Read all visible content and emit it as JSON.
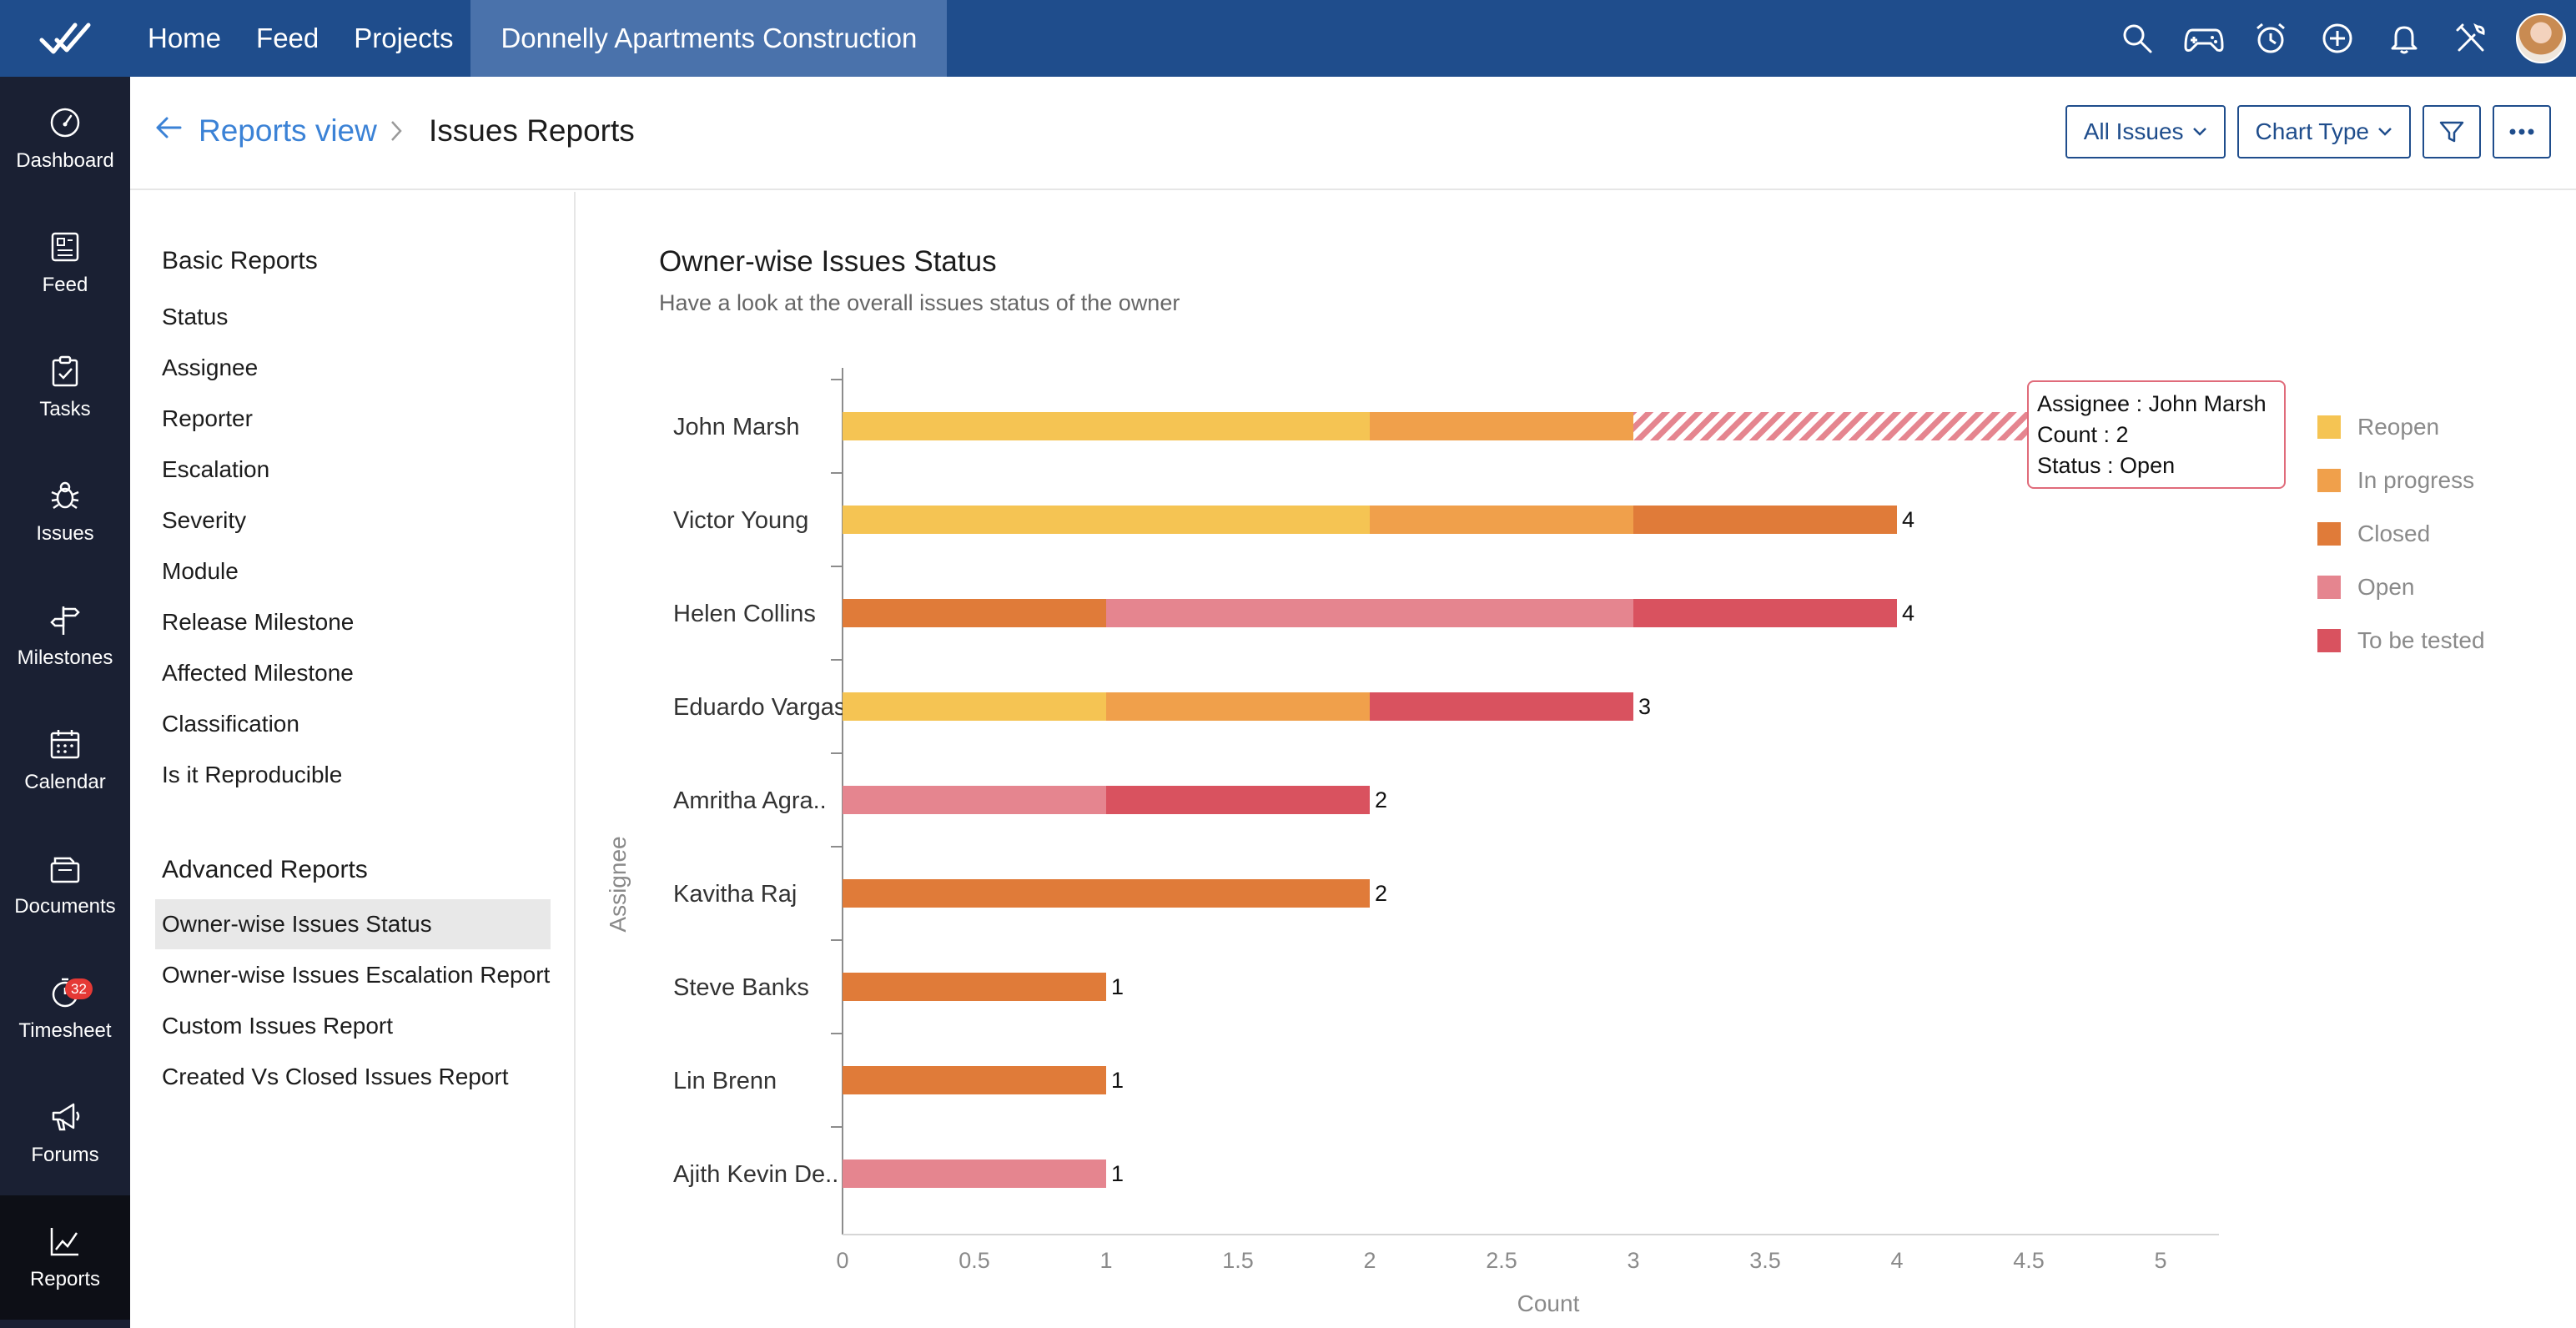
{
  "topbar": {
    "nav": [
      "Home",
      "Feed",
      "Projects"
    ],
    "project": "Donnelly Apartments Construction",
    "icons": [
      "search-icon",
      "gamepad-icon",
      "alarm-icon",
      "plus-circle-icon",
      "bell-icon",
      "tools-icon"
    ]
  },
  "sidebar": {
    "items": [
      {
        "label": "Dashboard",
        "icon": "dashboard-icon"
      },
      {
        "label": "Feed",
        "icon": "feed-icon"
      },
      {
        "label": "Tasks",
        "icon": "tasks-icon"
      },
      {
        "label": "Issues",
        "icon": "bug-icon"
      },
      {
        "label": "Milestones",
        "icon": "signpost-icon"
      },
      {
        "label": "Calendar",
        "icon": "calendar-icon"
      },
      {
        "label": "Documents",
        "icon": "documents-icon"
      },
      {
        "label": "Timesheet",
        "icon": "timer-icon",
        "badge": "32"
      },
      {
        "label": "Forums",
        "icon": "megaphone-icon"
      },
      {
        "label": "Reports",
        "icon": "reports-icon"
      }
    ],
    "active": "Reports"
  },
  "header": {
    "breadcrumb_link": "Reports view",
    "breadcrumb_current": "Issues Reports",
    "all_issues_label": "All Issues",
    "chart_type_label": "Chart Type"
  },
  "reports": {
    "basic_title": "Basic Reports",
    "basic": [
      "Status",
      "Assignee",
      "Reporter",
      "Escalation",
      "Severity",
      "Module",
      "Release Milestone",
      "Affected Milestone",
      "Classification",
      "Is it Reproducible"
    ],
    "advanced_title": "Advanced Reports",
    "advanced": [
      "Owner-wise Issues Status",
      "Owner-wise Issues Escalation Report",
      "Custom Issues Report",
      "Created Vs Closed Issues Report"
    ],
    "active": "Owner-wise Issues Status"
  },
  "tooltip": {
    "line1": "Assignee : John Marsh",
    "line2": "Count : 2",
    "line3": "Status : Open"
  },
  "colors": {
    "Reopen": "#f5c453",
    "In progress": "#f0a04b",
    "Closed": "#e07b39",
    "Open": "#e5858f",
    "To be tested": "#d9525f"
  },
  "chart_data": {
    "type": "bar",
    "orientation": "horizontal",
    "stacked": true,
    "title": "Owner-wise Issues Status",
    "subtitle": "Have a look at the overall issues status of the owner",
    "xlabel": "Count",
    "ylabel": "Assignee",
    "xlim": [
      0,
      5
    ],
    "xticks": [
      "0",
      "0.5",
      "1",
      "1.5",
      "2",
      "2.5",
      "3",
      "3.5",
      "4",
      "4.5",
      "5"
    ],
    "legend_position": "right",
    "highlight": {
      "category": "John Marsh",
      "series": "Open"
    },
    "categories": [
      "John Marsh",
      "Victor Young",
      "Helen Collins",
      "Eduardo Vargas",
      "Amritha Agra..",
      "Kavitha Raj",
      "Steve Banks",
      "Lin Brenn",
      "Ajith Kevin De.."
    ],
    "series": [
      {
        "name": "Reopen",
        "values": [
          2,
          2,
          0,
          1,
          0,
          0,
          0,
          0,
          0
        ]
      },
      {
        "name": "In progress",
        "values": [
          1,
          1,
          0,
          1,
          0,
          0,
          0,
          0,
          0
        ]
      },
      {
        "name": "Closed",
        "values": [
          0,
          1,
          1,
          0,
          0,
          2,
          1,
          1,
          0
        ]
      },
      {
        "name": "Open",
        "values": [
          2,
          0,
          2,
          0,
          1,
          0,
          0,
          0,
          1
        ]
      },
      {
        "name": "To be tested",
        "values": [
          0,
          0,
          1,
          1,
          1,
          0,
          0,
          0,
          0
        ]
      }
    ],
    "totals": [
      null,
      "4",
      "4",
      "3",
      "2",
      "2",
      "1",
      "1",
      "1"
    ]
  }
}
